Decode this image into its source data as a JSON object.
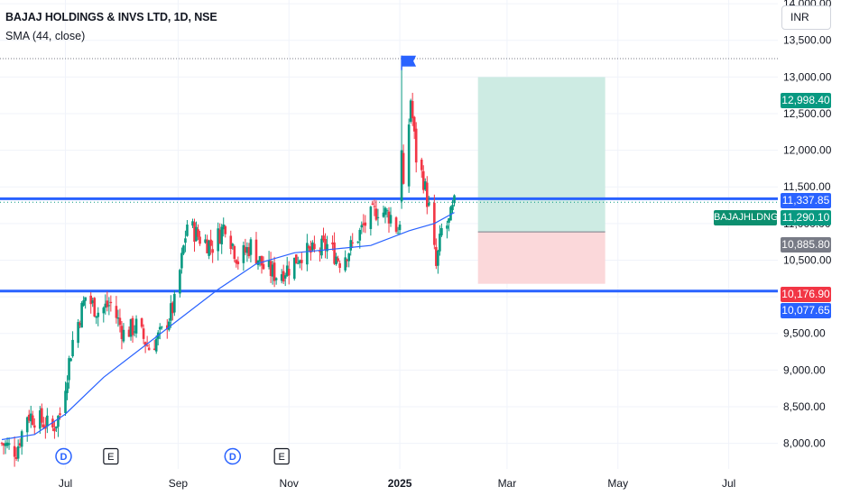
{
  "header": {
    "symbol_title": "BAJAJ HOLDINGS & INVS LTD, 1D, NSE",
    "indicator_title": "SMA (44, close)"
  },
  "currency_button": "INR",
  "symbol_label": "BAJAJHLDNG",
  "price_labels": [
    {
      "text": "12,998.40",
      "color": "#089981"
    },
    {
      "text": "11,337.85",
      "color": "#2962ff"
    },
    {
      "text": "11,290.10",
      "color": "#089981"
    },
    {
      "text": "10,885.80",
      "color": "#787b86"
    },
    {
      "text": "10,176.90",
      "color": "#f23645"
    },
    {
      "text": "10,077.65",
      "color": "#2962ff"
    }
  ],
  "colors": {
    "up": "#089981",
    "down": "#f23645",
    "sma": "#2962ff",
    "horizontal_line": "#2962ff",
    "target_zone": "#cdebe3",
    "stop_zone": "#fbd8da"
  },
  "icons": [
    "flag-icon",
    "dividend-marker-icon",
    "earnings-marker-icon"
  ],
  "chart_data": {
    "type": "candlestick",
    "title": "BAJAJ HOLDINGS & INVS LTD, 1D, NSE",
    "y_axis": {
      "ticks": [
        "8,000.00",
        "8,500.00",
        "9,000.00",
        "9,500.00",
        "10,000.00",
        "10,500.00",
        "11,000.00",
        "11,500.00",
        "12,000.00",
        "12,500.00",
        "13,000.00",
        "13,500.00",
        "14,000.00"
      ],
      "range": [
        7650,
        14050
      ]
    },
    "x_axis": {
      "ticks": [
        "Jul",
        "Sep",
        "Nov",
        "2025",
        "Mar",
        "May",
        "Jul"
      ],
      "range": [
        "2024-05-26",
        "2025-07-28"
      ]
    },
    "price_anchors": {
      "date": [
        "2024-05-27",
        "2024-06-04",
        "2024-06-10",
        "2024-06-18",
        "2024-06-24",
        "2024-06-28",
        "2024-07-05",
        "2024-07-12",
        "2024-07-19",
        "2024-07-26",
        "2024-08-02",
        "2024-08-09",
        "2024-08-16",
        "2024-08-23",
        "2024-08-30",
        "2024-09-03",
        "2024-09-06",
        "2024-09-13",
        "2024-09-20",
        "2024-09-27",
        "2024-10-04",
        "2024-10-11",
        "2024-10-18",
        "2024-10-25",
        "2024-11-01",
        "2024-11-08",
        "2024-11-15",
        "2024-11-22",
        "2024-11-29",
        "2024-12-06",
        "2024-12-13",
        "2024-12-20",
        "2024-12-27",
        "2024-12-31",
        "2025-01-03",
        "2025-01-07",
        "2025-01-10",
        "2025-01-14",
        "2025-01-17",
        "2025-01-21",
        "2025-01-24",
        "2025-01-28",
        "2025-01-31"
      ],
      "close": [
        8000,
        7900,
        8400,
        8300,
        8200,
        8400,
        9400,
        10000,
        9800,
        9900,
        9500,
        9600,
        9300,
        9500,
        9900,
        10500,
        11000,
        10800,
        10700,
        11000,
        10500,
        10700,
        10400,
        10300,
        10400,
        10600,
        10600,
        10700,
        10500,
        10700,
        11000,
        11200,
        11100,
        10900,
        11400,
        12700,
        11900,
        11600,
        11200,
        10400,
        10900,
        11000,
        11250
      ]
    },
    "sma_anchors": {
      "name": "SMA (44, close)",
      "date": [
        "2024-05-27",
        "2024-06-14",
        "2024-07-01",
        "2024-07-22",
        "2024-08-12",
        "2024-09-02",
        "2024-09-23",
        "2024-10-14",
        "2024-11-04",
        "2024-11-25",
        "2024-12-16",
        "2025-01-06",
        "2025-01-20",
        "2025-01-31"
      ],
      "value": [
        8050,
        8120,
        8400,
        8900,
        9300,
        9700,
        10100,
        10450,
        10600,
        10650,
        10700,
        10900,
        11000,
        11150
      ]
    },
    "peak": {
      "date": "2025-01-02",
      "high": 13290,
      "low": 12000
    },
    "horizontal_lines": [
      {
        "price": 11337.85,
        "label": "11,337.85"
      },
      {
        "price": 10077.65,
        "label": "10,077.65"
      }
    ],
    "dotted_level": {
      "price": 13250
    },
    "position_tool": {
      "type": "long",
      "date_start": "2025-02-13",
      "date_end": "2025-04-24",
      "target": 12998.4,
      "entry": 10885.8,
      "stop": 10176.9
    },
    "current_price": {
      "value": 11290.1,
      "label": "11,290.10"
    },
    "events": [
      {
        "type": "dividend",
        "label": "D",
        "date": "2024-06-30"
      },
      {
        "type": "earnings",
        "label": "E",
        "date": "2024-07-26"
      },
      {
        "type": "dividend",
        "label": "D",
        "date": "2024-10-01"
      },
      {
        "type": "earnings",
        "label": "E",
        "date": "2024-10-28"
      }
    ]
  }
}
